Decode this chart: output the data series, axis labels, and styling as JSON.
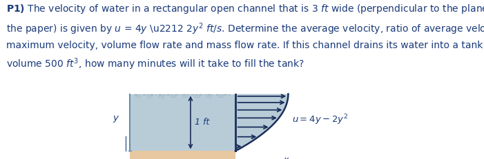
{
  "text_color": "#1a3a7a",
  "background_color": "#ffffff",
  "channel_water_color": "#b8ccd8",
  "channel_floor_color": "#e8c8a0",
  "arrow_color": "#1a2e5a",
  "profile_outline_color": "#1a2e5a",
  "dim_arrow_color": "#1a2e5a",
  "label_color": "#1a3a7a",
  "wave_color": "#9ab0c0",
  "line1": "P1) The velocity of water in a rectangular open channel that is 3 ft wide (perpendicular to the plane of",
  "line2": "the paper) is given by u = 4y − 2y² ft/s. Determine the average velocity, ratio of average velocity to",
  "line3": "maximum velocity, volume flow rate and mass flow rate. If this channel drains its water into a tank of",
  "line4": "volume 500 ft³, how many minutes will it take to fill the tank?"
}
